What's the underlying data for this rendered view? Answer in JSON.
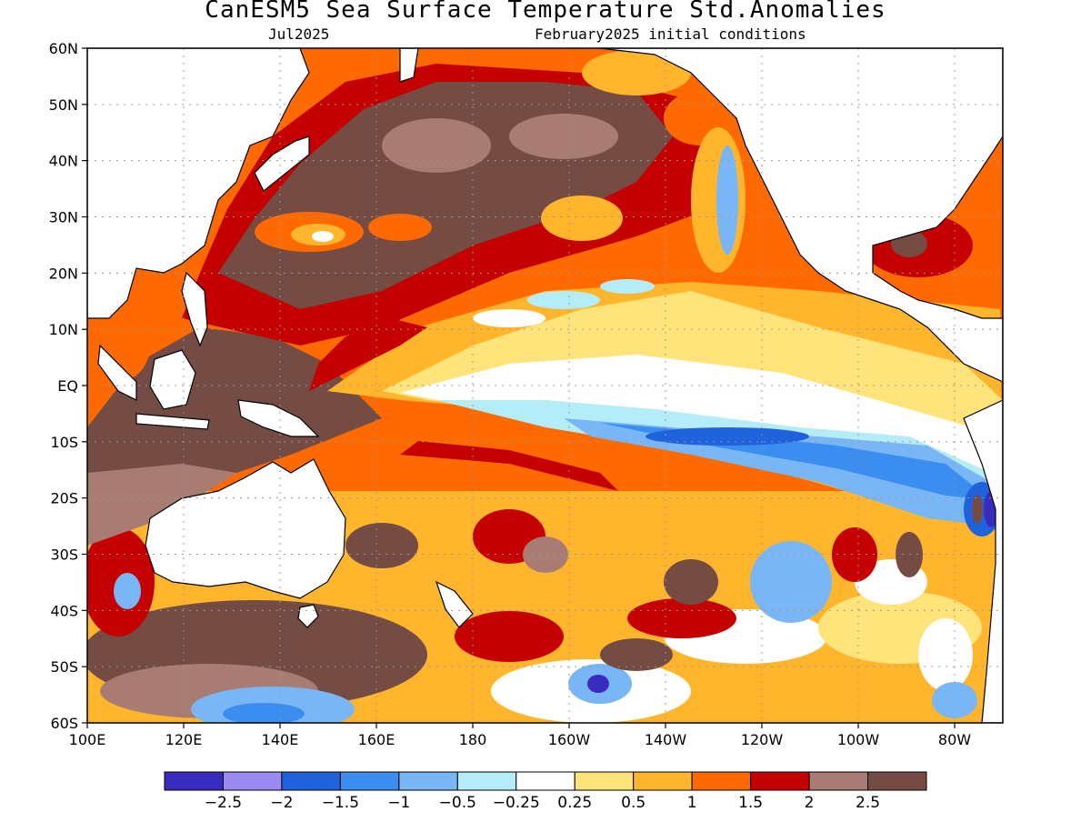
{
  "title": "CanESM5 Sea Surface Temperature Std.Anomalies",
  "subtitle_left": "Jul2025",
  "subtitle_right": "February2025 initial conditions",
  "map": {
    "lon_range": [
      100,
      290
    ],
    "lat_range": [
      -60,
      60
    ],
    "lat_ticks": [
      {
        "value": 60,
        "label": "60N"
      },
      {
        "value": 50,
        "label": "50N"
      },
      {
        "value": 40,
        "label": "40N"
      },
      {
        "value": 30,
        "label": "30N"
      },
      {
        "value": 20,
        "label": "20N"
      },
      {
        "value": 10,
        "label": "10N"
      },
      {
        "value": 0,
        "label": "EQ"
      },
      {
        "value": -10,
        "label": "10S"
      },
      {
        "value": -20,
        "label": "20S"
      },
      {
        "value": -30,
        "label": "30S"
      },
      {
        "value": -40,
        "label": "40S"
      },
      {
        "value": -50,
        "label": "50S"
      },
      {
        "value": -60,
        "label": "60S"
      }
    ],
    "lon_ticks": [
      {
        "value": 100,
        "label": "100E"
      },
      {
        "value": 120,
        "label": "120E"
      },
      {
        "value": 140,
        "label": "140E"
      },
      {
        "value": 160,
        "label": "160E"
      },
      {
        "value": 180,
        "label": "180"
      },
      {
        "value": 200,
        "label": "160W"
      },
      {
        "value": 220,
        "label": "140W"
      },
      {
        "value": 240,
        "label": "120W"
      },
      {
        "value": 260,
        "label": "100W"
      },
      {
        "value": 280,
        "label": "80W"
      }
    ],
    "grid": "dotted"
  },
  "colorbar": {
    "colors": [
      "#3a2bbf",
      "#9b8af0",
      "#1f62dc",
      "#3b8ef0",
      "#78b6f5",
      "#b4ecf8",
      "#ffffff",
      "#ffe47c",
      "#ffb52c",
      "#ff6a00",
      "#c40000",
      "#a87b73",
      "#744c44"
    ],
    "labels": [
      "−2.5",
      "−2",
      "−1.5",
      "−1",
      "−0.5",
      "−0.25",
      "0.25",
      "0.5",
      "1",
      "1.5",
      "2",
      "2.5"
    ]
  }
}
